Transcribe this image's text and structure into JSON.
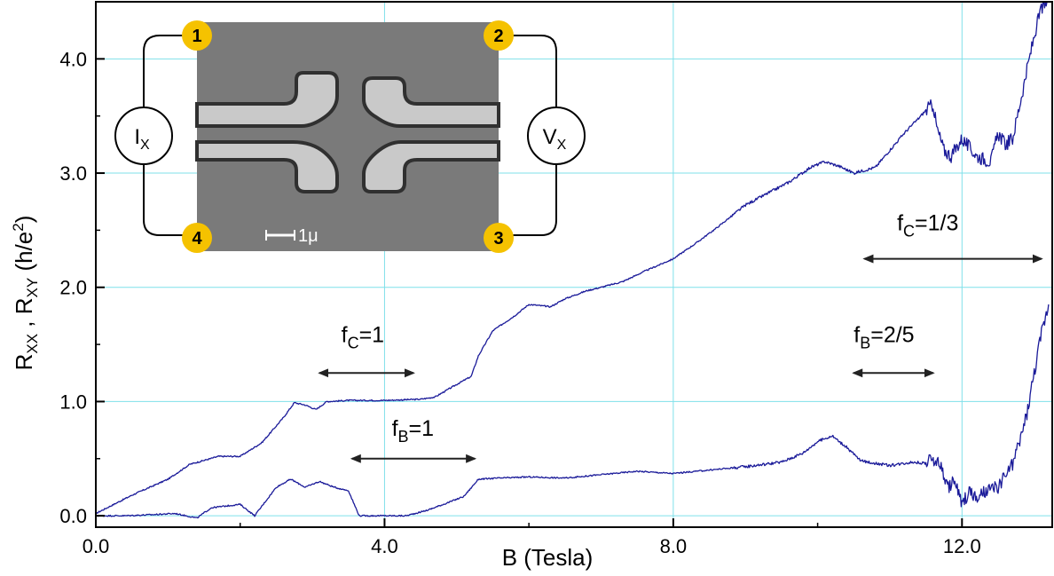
{
  "chart_data": {
    "type": "line",
    "xlabel": "B (Tesla)",
    "ylabel": {
      "main1": "R",
      "sub1": "XX",
      "sep": " , ",
      "main2": "R",
      "sub2": "XY",
      "unit_pre": "  (h/e",
      "unit_sup": "2",
      "unit_post": ")"
    },
    "xlim": [
      0.0,
      13.25
    ],
    "ylim": [
      -0.1,
      4.5
    ],
    "x_ticks": [
      0.0,
      4.0,
      8.0,
      12.0
    ],
    "x_tick_labels": [
      "0.0",
      "4.0",
      "8.0",
      "12.0"
    ],
    "y_ticks": [
      0.0,
      1.0,
      2.0,
      3.0,
      4.0
    ],
    "y_tick_labels": [
      "0.0",
      "1.0",
      "2.0",
      "3.0",
      "4.0"
    ],
    "grid": true,
    "colors": {
      "line": "#1a1a99",
      "grid": "#7fe0ea",
      "pad": "#f5c200",
      "arrow": "#222222"
    },
    "series": [
      {
        "x": [
          0.0,
          0.5,
          1.0,
          1.3,
          1.7,
          2.0,
          2.3,
          2.6,
          2.75,
          2.9,
          3.05,
          3.2,
          3.5,
          4.0,
          4.5,
          4.7,
          5.0,
          5.2,
          5.3,
          5.5,
          5.8,
          6.0,
          6.3,
          6.5,
          6.8,
          7.0,
          7.3,
          7.6,
          8.0,
          8.3,
          8.6,
          9.0,
          9.3,
          9.6,
          9.9,
          10.1,
          10.3,
          10.5,
          10.8,
          11.0,
          11.2,
          11.4,
          11.5,
          11.6,
          11.65,
          11.75,
          11.85,
          12.0,
          12.2,
          12.4,
          12.5,
          12.6,
          12.7,
          12.8,
          12.9,
          13.0,
          13.1,
          13.2
        ],
        "y": [
          0.02,
          0.18,
          0.32,
          0.45,
          0.52,
          0.52,
          0.64,
          0.86,
          0.99,
          0.97,
          0.93,
          1.0,
          1.01,
          1.01,
          1.02,
          1.04,
          1.15,
          1.22,
          1.4,
          1.62,
          1.75,
          1.85,
          1.83,
          1.9,
          1.97,
          2.0,
          2.05,
          2.14,
          2.25,
          2.38,
          2.52,
          2.72,
          2.82,
          2.92,
          3.05,
          3.1,
          3.06,
          3.0,
          3.05,
          3.2,
          3.35,
          3.48,
          3.55,
          3.6,
          3.4,
          3.2,
          3.15,
          3.3,
          3.15,
          3.1,
          3.35,
          3.25,
          3.3,
          3.6,
          3.9,
          4.2,
          4.45,
          4.5
        ]
      },
      {
        "x": [
          0.0,
          0.4,
          0.8,
          1.1,
          1.4,
          1.6,
          2.0,
          2.2,
          2.5,
          2.7,
          2.9,
          3.1,
          3.3,
          3.5,
          3.58,
          3.65,
          4.0,
          4.3,
          4.6,
          4.9,
          5.1,
          5.3,
          5.6,
          6.0,
          6.5,
          7.0,
          7.5,
          8.0,
          8.5,
          9.0,
          9.5,
          9.8,
          10.0,
          10.2,
          10.4,
          10.6,
          11.0,
          11.3,
          11.5,
          11.6,
          11.7,
          11.8,
          11.9,
          12.0,
          12.1,
          12.2,
          12.3,
          12.5,
          12.7,
          12.8,
          12.9,
          13.0,
          13.1,
          13.2
        ],
        "y": [
          0.0,
          0.0,
          0.01,
          0.02,
          -0.02,
          0.07,
          0.1,
          0.0,
          0.25,
          0.32,
          0.25,
          0.3,
          0.25,
          0.22,
          0.1,
          0.0,
          0.0,
          0.0,
          0.05,
          0.12,
          0.17,
          0.32,
          0.33,
          0.34,
          0.33,
          0.36,
          0.39,
          0.37,
          0.4,
          0.43,
          0.47,
          0.55,
          0.65,
          0.7,
          0.6,
          0.48,
          0.44,
          0.47,
          0.46,
          0.5,
          0.45,
          0.25,
          0.3,
          0.1,
          0.22,
          0.14,
          0.2,
          0.25,
          0.45,
          0.65,
          0.9,
          1.25,
          1.6,
          1.85
        ]
      }
    ],
    "annotations": [
      {
        "base": "f",
        "sub": "C",
        "rest": "=1",
        "x_from": 3.1,
        "x_to": 4.4,
        "arrow_y": 1.25,
        "text_y": 1.52,
        "text_x": 3.4
      },
      {
        "base": "f",
        "sub": "B",
        "rest": "=1",
        "x_from": 3.55,
        "x_to": 5.25,
        "arrow_y": 0.5,
        "text_y": 0.7,
        "text_x": 4.1
      },
      {
        "base": "f",
        "sub": "B",
        "rest": "=2/5",
        "x_from": 10.5,
        "x_to": 11.6,
        "arrow_y": 1.25,
        "text_y": 1.52,
        "text_x": 10.5
      },
      {
        "base": "f",
        "sub": "C",
        "rest": "=1/3",
        "x_from": 10.65,
        "x_to": 13.1,
        "arrow_y": 2.25,
        "text_y": 2.5,
        "text_x": 11.1
      }
    ]
  },
  "inset": {
    "pads": [
      "1",
      "2",
      "3",
      "4"
    ],
    "current_label": {
      "main": "I",
      "sub": "X"
    },
    "voltage_label": {
      "main": "V",
      "sub": "X"
    },
    "scale_bar": "1μ"
  }
}
